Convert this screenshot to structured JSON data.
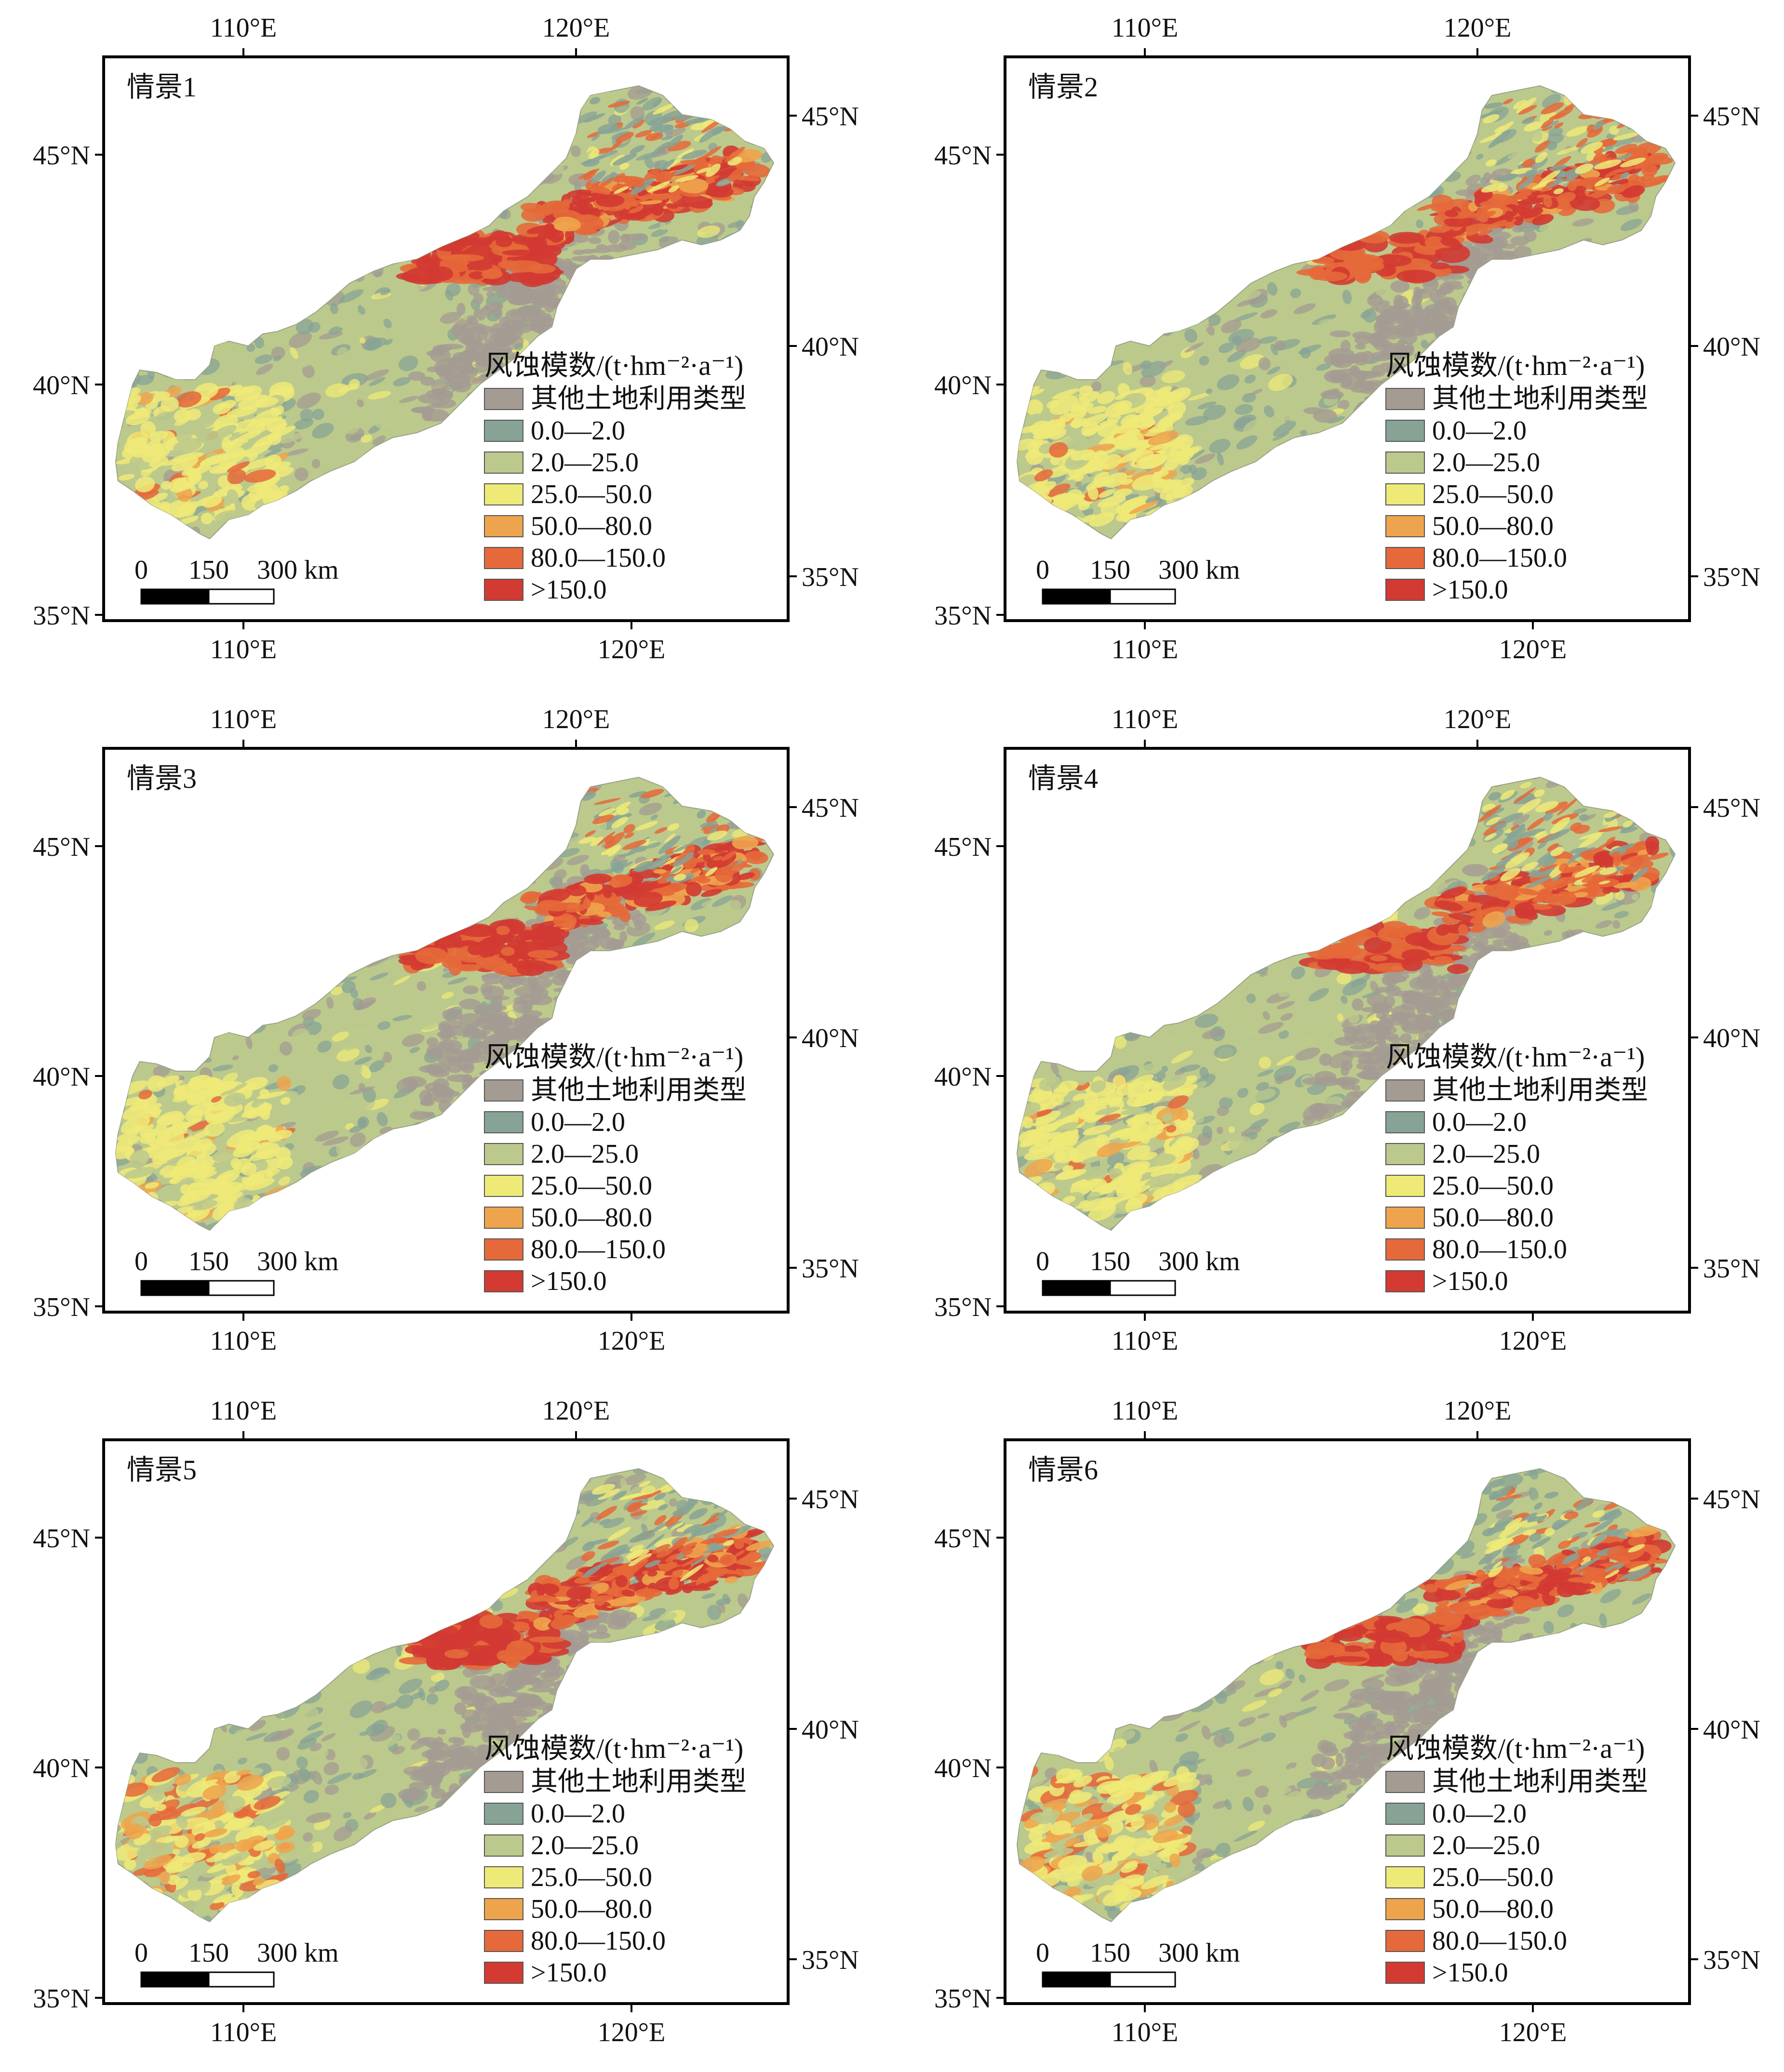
{
  "figure": {
    "axes": {
      "x_ticks_top": [
        "110°E",
        "120°E"
      ],
      "x_ticks_bottom": [
        "110°E",
        "120°E"
      ],
      "y_ticks_left": [
        "45°N",
        "40°N",
        "35°N"
      ],
      "y_ticks_right": [
        "45°N",
        "40°N",
        "35°N"
      ]
    },
    "legend": {
      "title": "风蚀模数/(t·hm⁻²·a⁻¹)",
      "items": [
        {
          "label": "其他土地利用类型",
          "color": "#a49b93"
        },
        {
          "label": "0.0—2.0",
          "color": "#87a396"
        },
        {
          "label": "2.0—25.0",
          "color": "#bcc98c"
        },
        {
          "label": "25.0—50.0",
          "color": "#eeea78"
        },
        {
          "label": "50.0—80.0",
          "color": "#eea44c"
        },
        {
          "label": "80.0—150.0",
          "color": "#e5693a"
        },
        {
          "label": ">150.0",
          "color": "#d23a32"
        }
      ]
    },
    "scale_bar": {
      "labels": [
        "0",
        "150",
        "300 km"
      ]
    },
    "panels": [
      {
        "label": "情景1",
        "hotspot": {
          "wind": 0.95,
          "east": 0.85,
          "west": 0.25
        }
      },
      {
        "label": "情景2",
        "hotspot": {
          "wind": 0.55,
          "east": 0.75,
          "west": 0.15
        }
      },
      {
        "label": "情景3",
        "hotspot": {
          "wind": 0.9,
          "east": 0.85,
          "west": 0.2
        }
      },
      {
        "label": "情景4",
        "hotspot": {
          "wind": 0.55,
          "east": 0.7,
          "west": 0.15
        }
      },
      {
        "label": "情景5",
        "hotspot": {
          "wind": 1.0,
          "east": 0.95,
          "west": 0.8
        }
      },
      {
        "label": "情景6",
        "hotspot": {
          "wind": 0.85,
          "east": 0.85,
          "west": 0.6
        }
      }
    ]
  }
}
